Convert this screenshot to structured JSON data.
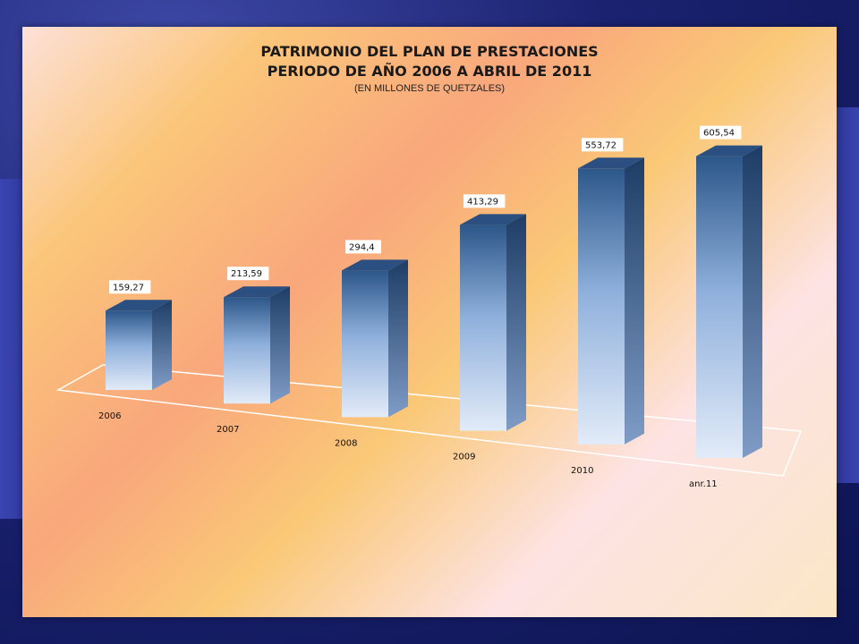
{
  "chart_data": {
    "type": "bar",
    "title": "PATRIMONIO DEL  PLAN DE PRESTACIONES",
    "subtitle": "PERIODO DE AÑO 2006 A ABRIL DE 2011",
    "note": "(EN MILLONES DE QUETZALES)",
    "categories": [
      "2006",
      "2007",
      "2008",
      "2009",
      "2010",
      "anr.11"
    ],
    "values": [
      159.27,
      213.59,
      294.4,
      413.29,
      553.72,
      605.54
    ],
    "value_labels": [
      "159,27",
      "213,59",
      "294,4",
      "413,29",
      "553,72",
      "605,54"
    ],
    "xlabel": "",
    "ylabel": "",
    "ylim": [
      0,
      700
    ],
    "grid": false,
    "legend": "none",
    "bar_color_top": "#2f5a8f",
    "bar_color_bottom": "#dbe6f6"
  }
}
